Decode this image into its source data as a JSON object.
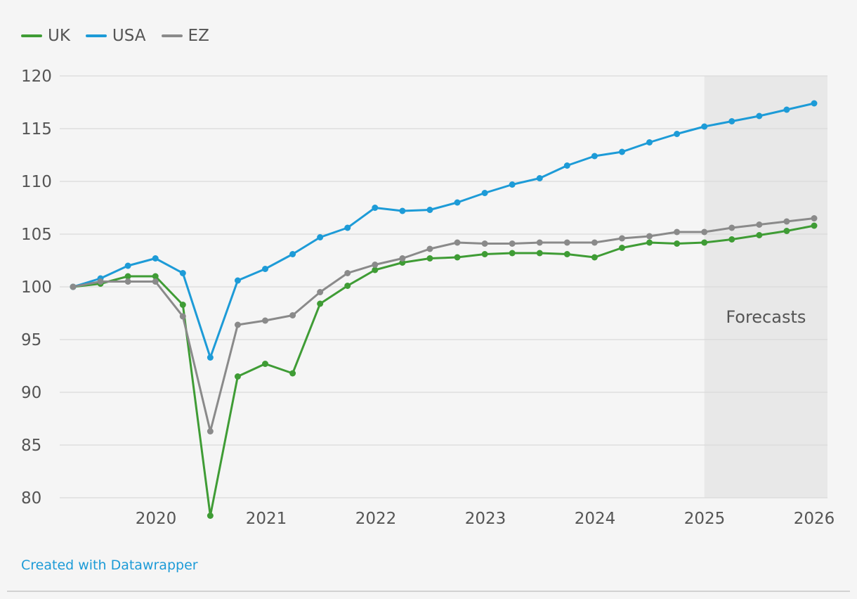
{
  "chart_data": {
    "type": "line",
    "x_labels": [
      "2020",
      "2021",
      "2022",
      "2023",
      "2024",
      "2025",
      "2026"
    ],
    "ylim": [
      80,
      120
    ],
    "yticks": [
      80,
      85,
      90,
      95,
      100,
      105,
      110,
      115,
      120
    ],
    "grid": true,
    "legend_position": "top-left",
    "forecast_label": "Forecasts",
    "forecast_start": 2025.0,
    "series": [
      {
        "name": "UK",
        "color": "#3f9c35",
        "x": [
          2019.25,
          2019.5,
          2019.75,
          2020.0,
          2020.25,
          2020.5,
          2020.75,
          2021.0,
          2021.25,
          2021.5,
          2021.75,
          2022.0,
          2022.25,
          2022.5,
          2022.75,
          2023.0,
          2023.25,
          2023.5,
          2023.75,
          2024.0,
          2024.25,
          2024.5,
          2024.75,
          2025.0,
          2025.25,
          2025.5,
          2025.75,
          2026.0
        ],
        "values": [
          100.0,
          100.3,
          101.0,
          101.0,
          98.3,
          78.3,
          91.5,
          92.7,
          91.8,
          98.4,
          100.1,
          101.6,
          102.3,
          102.7,
          102.8,
          103.1,
          103.2,
          103.2,
          103.1,
          102.8,
          103.7,
          104.2,
          104.1,
          104.2,
          104.5,
          104.9,
          105.3,
          105.8
        ]
      },
      {
        "name": "USA",
        "color": "#1d9bd7",
        "x": [
          2019.25,
          2019.5,
          2019.75,
          2020.0,
          2020.25,
          2020.5,
          2020.75,
          2021.0,
          2021.25,
          2021.5,
          2021.75,
          2022.0,
          2022.25,
          2022.5,
          2022.75,
          2023.0,
          2023.25,
          2023.5,
          2023.75,
          2024.0,
          2024.25,
          2024.5,
          2024.75,
          2025.0,
          2025.25,
          2025.5,
          2025.75,
          2026.0
        ],
        "values": [
          100.0,
          100.8,
          102.0,
          102.7,
          101.3,
          93.3,
          100.6,
          101.7,
          103.1,
          104.7,
          105.6,
          107.5,
          107.2,
          107.3,
          108.0,
          108.9,
          109.7,
          110.3,
          111.5,
          112.4,
          112.8,
          113.7,
          114.5,
          115.2,
          115.7,
          116.2,
          116.8,
          117.4
        ]
      },
      {
        "name": "EZ",
        "color": "#8a8a8a",
        "x": [
          2019.25,
          2019.5,
          2019.75,
          2020.0,
          2020.25,
          2020.5,
          2020.75,
          2021.0,
          2021.25,
          2021.5,
          2021.75,
          2022.0,
          2022.25,
          2022.5,
          2022.75,
          2023.0,
          2023.25,
          2023.5,
          2023.75,
          2024.0,
          2024.25,
          2024.5,
          2024.75,
          2025.0,
          2025.25,
          2025.5,
          2025.75,
          2026.0
        ],
        "values": [
          100.0,
          100.5,
          100.5,
          100.5,
          97.2,
          86.3,
          96.4,
          96.8,
          97.3,
          99.5,
          101.3,
          102.1,
          102.7,
          103.6,
          104.2,
          104.1,
          104.1,
          104.2,
          104.2,
          104.2,
          104.6,
          104.8,
          105.2,
          105.2,
          105.6,
          105.9,
          106.2,
          106.5
        ]
      }
    ]
  },
  "footer": {
    "credit": "Created with Datawrapper"
  }
}
